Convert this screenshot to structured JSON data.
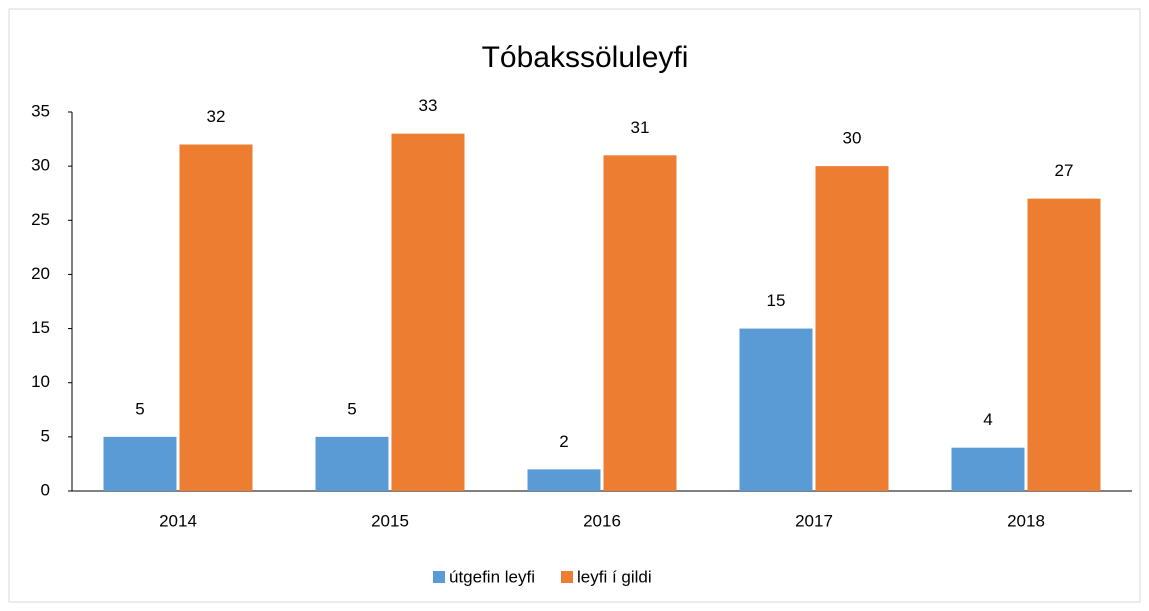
{
  "chart_data": {
    "type": "bar",
    "title": "Tóbakssöluleyfi",
    "categories": [
      "2014",
      "2015",
      "2016",
      "2017",
      "2018"
    ],
    "series": [
      {
        "name": "útgefin leyfi",
        "color": "#5b9bd5",
        "values": [
          5,
          5,
          2,
          15,
          4
        ]
      },
      {
        "name": "leyfi í gildi",
        "color": "#ed7d31",
        "values": [
          32,
          33,
          31,
          30,
          27
        ]
      }
    ],
    "ylim": [
      0,
      35
    ],
    "yticks": [
      0,
      5,
      10,
      15,
      20,
      25,
      30,
      35
    ],
    "grid": false,
    "legend": "bottom"
  }
}
